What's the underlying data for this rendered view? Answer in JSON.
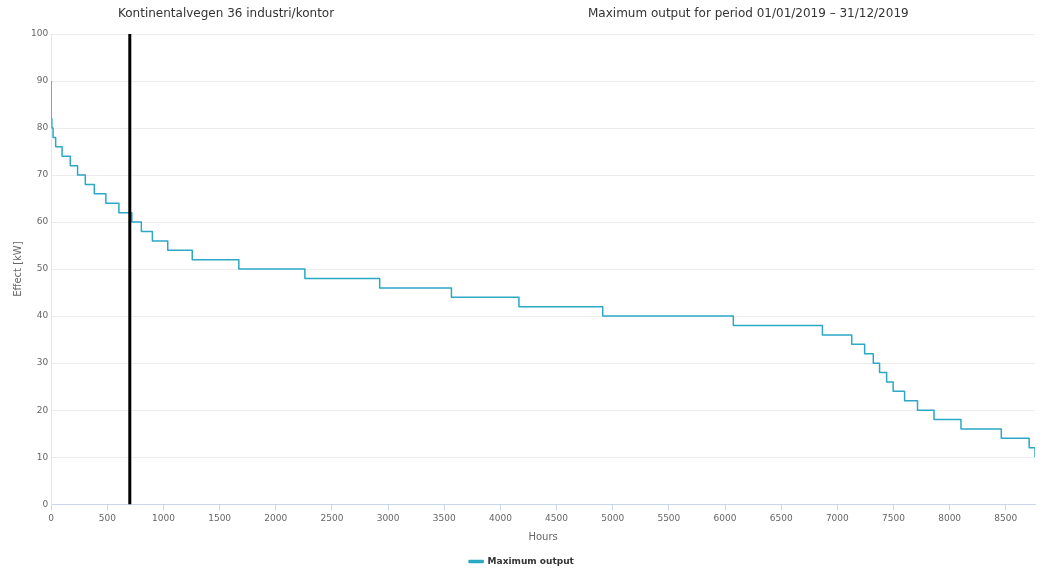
{
  "chart_data": {
    "type": "step",
    "title": "Kontinentalvegen 36 industri/kontor",
    "subtitle": "Maximum output for period 01/01/2019 – 31/12/2019",
    "xlabel": "Hours",
    "ylabel": "Effect [kW]",
    "x": [
      0,
      0,
      6,
      17,
      40,
      97,
      170,
      235,
      304,
      384,
      487,
      603,
      718,
      803,
      901,
      1038,
      1256,
      1671,
      2259,
      2925,
      3564,
      4165,
      4911,
      6074,
      6867,
      7128,
      7243,
      7320,
      7376,
      7439,
      7497,
      7599,
      7714,
      7861,
      8101,
      8460,
      8708,
      8760
    ],
    "series": [
      {
        "name": "Maximum output",
        "color": "#2aa8c4",
        "values": [
          90,
          82,
          80,
          78,
          76,
          74,
          72,
          70,
          68,
          66,
          64,
          62,
          60,
          58,
          56,
          54,
          52,
          50,
          48,
          46,
          44,
          42,
          40,
          38,
          36,
          34,
          32,
          30,
          28,
          26,
          24,
          22,
          20,
          18,
          16,
          14,
          12,
          10
        ]
      }
    ],
    "xlim": [
      0,
      8760
    ],
    "xticks": [
      0,
      500,
      1000,
      1500,
      2000,
      2500,
      3000,
      3500,
      4000,
      4500,
      5000,
      5500,
      6000,
      6500,
      7000,
      7500,
      8000,
      8500
    ],
    "ylim": [
      0,
      100
    ],
    "yticks": [
      0,
      10,
      20,
      30,
      40,
      50,
      60,
      70,
      80,
      90,
      100
    ],
    "ref_lines": [
      {
        "axis": "x",
        "value": 700,
        "color": "#000000"
      }
    ],
    "grid": "y",
    "legend": "bottom",
    "marker": "none",
    "line_style": "solid"
  }
}
